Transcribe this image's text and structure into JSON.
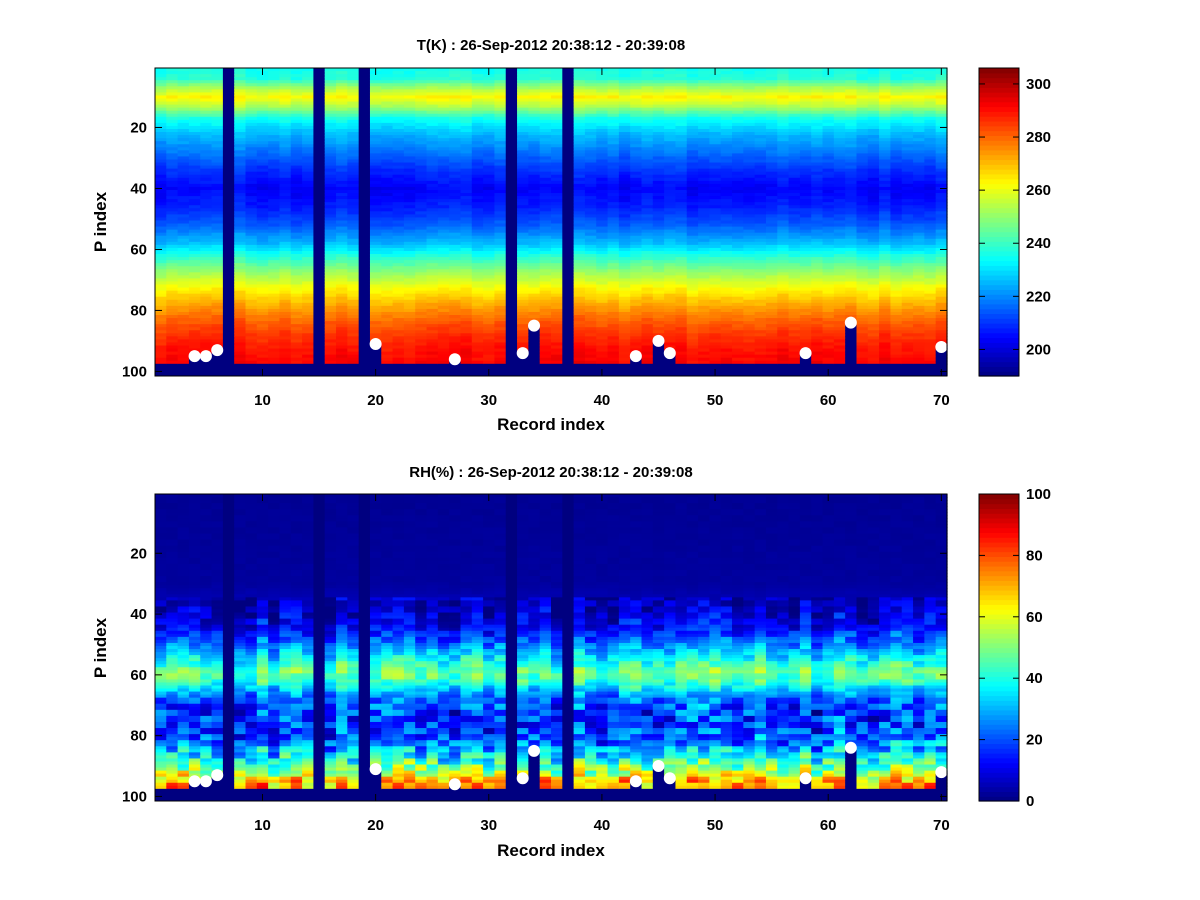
{
  "figure": {
    "background": "#ffffff"
  },
  "chart_data": [
    {
      "type": "heatmap",
      "id": "temp",
      "title": "T(K) : 26-Sep-2012 20:38:12 - 20:39:08",
      "xlabel": "Record index",
      "ylabel": "P index",
      "xlim": [
        0.5,
        70.5
      ],
      "ylim": [
        0.5,
        101.5
      ],
      "x_ticks": [
        10,
        20,
        30,
        40,
        50,
        60,
        70
      ],
      "y_ticks": [
        20,
        40,
        60,
        80,
        100
      ],
      "colormap": "jet",
      "clim": [
        190,
        306
      ],
      "colorbar_ticks": [
        200,
        220,
        240,
        260,
        280,
        300
      ],
      "missing_value": 190,
      "n_records": 70,
      "n_levels": 101,
      "gap_records": [
        7,
        15,
        19,
        32,
        37
      ],
      "bottom_levels": [
        98,
        101
      ],
      "profile_by_level": [
        {
          "p": 1,
          "v": 236
        },
        {
          "p": 4,
          "v": 238
        },
        {
          "p": 7,
          "v": 252
        },
        {
          "p": 10,
          "v": 263
        },
        {
          "p": 13,
          "v": 254
        },
        {
          "p": 17,
          "v": 236
        },
        {
          "p": 22,
          "v": 226
        },
        {
          "p": 28,
          "v": 218
        },
        {
          "p": 34,
          "v": 210
        },
        {
          "p": 40,
          "v": 204
        },
        {
          "p": 46,
          "v": 208
        },
        {
          "p": 52,
          "v": 215
        },
        {
          "p": 58,
          "v": 226
        },
        {
          "p": 63,
          "v": 240
        },
        {
          "p": 68,
          "v": 252
        },
        {
          "p": 73,
          "v": 263
        },
        {
          "p": 78,
          "v": 272
        },
        {
          "p": 83,
          "v": 280
        },
        {
          "p": 88,
          "v": 286
        },
        {
          "p": 93,
          "v": 290
        },
        {
          "p": 97,
          "v": 292
        }
      ],
      "surface_markers": [
        {
          "record": 4,
          "level": 95
        },
        {
          "record": 5,
          "level": 95
        },
        {
          "record": 6,
          "level": 93
        },
        {
          "record": 20,
          "level": 91
        },
        {
          "record": 27,
          "level": 96
        },
        {
          "record": 33,
          "level": 94
        },
        {
          "record": 34,
          "level": 85
        },
        {
          "record": 43,
          "level": 95
        },
        {
          "record": 45,
          "level": 90
        },
        {
          "record": 46,
          "level": 94
        },
        {
          "record": 58,
          "level": 94
        },
        {
          "record": 62,
          "level": 84
        },
        {
          "record": 70,
          "level": 92
        }
      ],
      "marker_color": "#ffffff"
    },
    {
      "type": "heatmap",
      "id": "rh",
      "title": "RH(%) : 26-Sep-2012 20:38:12 - 20:39:08",
      "xlabel": "Record index",
      "ylabel": "P index",
      "xlim": [
        0.5,
        70.5
      ],
      "ylim": [
        0.5,
        101.5
      ],
      "x_ticks": [
        10,
        20,
        30,
        40,
        50,
        60,
        70
      ],
      "y_ticks": [
        20,
        40,
        60,
        80,
        100
      ],
      "colormap": "jet",
      "clim": [
        0,
        100
      ],
      "colorbar_ticks": [
        0,
        20,
        40,
        60,
        80,
        100
      ],
      "missing_value": 0,
      "n_records": 70,
      "n_levels": 101,
      "gap_records": [
        7,
        15,
        19,
        32,
        37
      ],
      "bottom_levels": [
        98,
        101
      ],
      "profile_by_level": [
        {
          "p": 1,
          "v": 2
        },
        {
          "p": 30,
          "v": 3
        },
        {
          "p": 38,
          "v": 6
        },
        {
          "p": 44,
          "v": 12
        },
        {
          "p": 50,
          "v": 24
        },
        {
          "p": 55,
          "v": 38
        },
        {
          "p": 59,
          "v": 48
        },
        {
          "p": 62,
          "v": 44
        },
        {
          "p": 65,
          "v": 32
        },
        {
          "p": 68,
          "v": 22
        },
        {
          "p": 72,
          "v": 18
        },
        {
          "p": 76,
          "v": 17
        },
        {
          "p": 80,
          "v": 20
        },
        {
          "p": 84,
          "v": 28
        },
        {
          "p": 88,
          "v": 40
        },
        {
          "p": 92,
          "v": 55
        },
        {
          "p": 95,
          "v": 68
        },
        {
          "p": 97,
          "v": 72
        }
      ],
      "surface_markers": [
        {
          "record": 4,
          "level": 95
        },
        {
          "record": 5,
          "level": 95
        },
        {
          "record": 6,
          "level": 93
        },
        {
          "record": 20,
          "level": 91
        },
        {
          "record": 27,
          "level": 96
        },
        {
          "record": 33,
          "level": 94
        },
        {
          "record": 34,
          "level": 85
        },
        {
          "record": 43,
          "level": 95
        },
        {
          "record": 45,
          "level": 90
        },
        {
          "record": 46,
          "level": 94
        },
        {
          "record": 58,
          "level": 94
        },
        {
          "record": 62,
          "level": 84
        },
        {
          "record": 70,
          "level": 92
        }
      ],
      "marker_color": "#ffffff"
    }
  ]
}
